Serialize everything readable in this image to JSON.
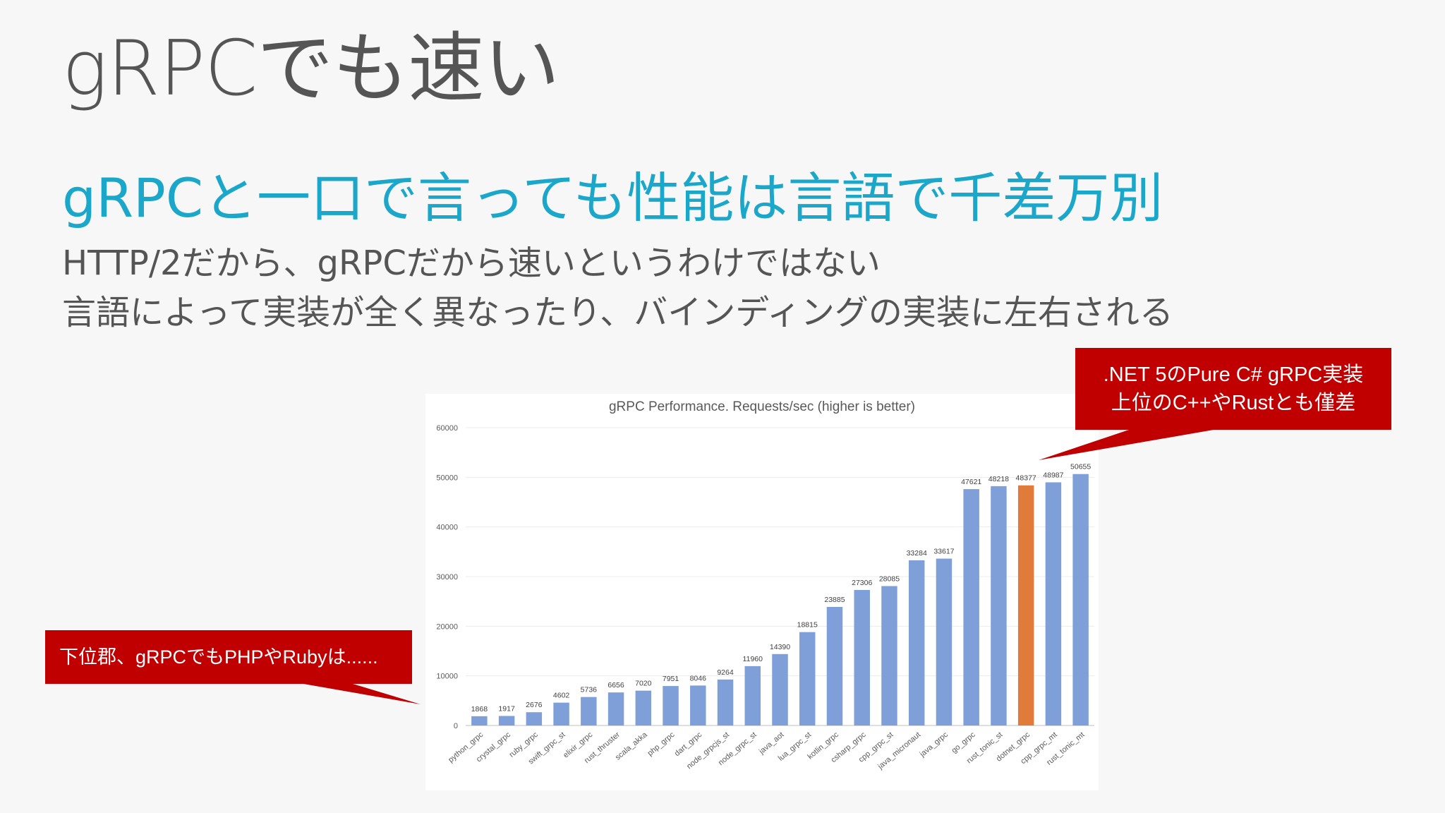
{
  "slide": {
    "title": "gRPCでも速い",
    "subtitle": "gRPCと一口で言っても性能は言語で千差万別",
    "body_lines": [
      "HTTP/2だから、gRPCだから速いというわけではない",
      "言語によって実装が全く異なったり、バインディングの実装に左右される"
    ]
  },
  "callouts": {
    "top_right": {
      "line1": ".NET 5のPure C# gRPC実装",
      "line2": "上位のC++やRustとも僅差"
    },
    "bottom_left": {
      "text": "下位郡、gRPCでもPHPやRubyは......"
    }
  },
  "colors": {
    "bar": "#7f9fd8",
    "highlight": "#e07b39",
    "callout": "#c00000",
    "subtitle": "#1ba7c9"
  },
  "chart_data": {
    "type": "bar",
    "title": "gRPC Performance. Requests/sec (higher is better)",
    "xlabel": "",
    "ylabel": "",
    "ylim": [
      0,
      60000
    ],
    "yticks": [
      0,
      10000,
      20000,
      30000,
      40000,
      50000,
      60000
    ],
    "grid": true,
    "legend": "none",
    "categories": [
      "python_grpc",
      "crystal_grpc",
      "ruby_grpc",
      "swift_grpc_st",
      "elixir_grpc",
      "rust_thruster",
      "scala_akka",
      "php_grpc",
      "dart_grpc",
      "node_grpcjs_st",
      "node_grpc_st",
      "java_aot",
      "lua_grpc_st",
      "kotlin_grpc",
      "csharp_grpc",
      "cpp_grpc_st",
      "java_micronaut",
      "java_grpc",
      "go_grpc",
      "rust_tonic_st",
      "dotnet_grpc",
      "cpp_grpc_mt",
      "rust_tonic_mt"
    ],
    "values": [
      1868,
      1917,
      2676,
      4602,
      5736,
      6656,
      7020,
      7951,
      8046,
      9264,
      11960,
      14390,
      18815,
      23885,
      27306,
      28085,
      33284,
      33617,
      47621,
      48218,
      48377,
      48987,
      50655
    ],
    "highlight_category": "dotnet_grpc"
  }
}
